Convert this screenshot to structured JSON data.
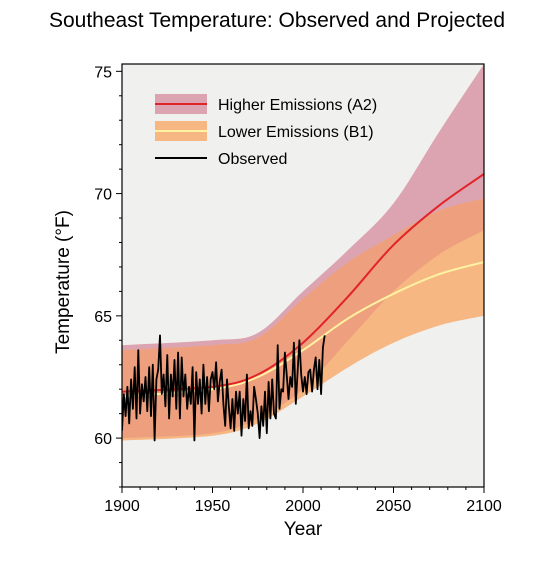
{
  "chart_data": {
    "type": "area",
    "title": "Southeast Temperature: Observed and Projected",
    "xlabel": "Year",
    "ylabel": "Temperature (°F)",
    "xlim": [
      1900,
      2100
    ],
    "ylim": [
      58,
      75.3
    ],
    "xticks": [
      1900,
      1950,
      2000,
      2050,
      2100
    ],
    "yticks": [
      60,
      65,
      70,
      75
    ],
    "legend_position": "top-left",
    "grid": false,
    "colors": {
      "plot_background": "#f0f0ef",
      "a2_band": "#dca3b1",
      "b1_band": "#f6b783",
      "overlap_band": "#ee9f7e",
      "a2_line": "#e2242a",
      "b1_line": "#fff2a0",
      "observed_line": "#000000"
    },
    "series": [
      {
        "name": "Higher Emissions (A2)",
        "kind": "band_with_median",
        "x": [
          1900,
          1950,
          1975,
          2000,
          2025,
          2050,
          2075,
          2100
        ],
        "median": [
          61.9,
          62.1,
          62.6,
          63.9,
          65.8,
          67.9,
          69.5,
          70.8
        ],
        "upper": [
          63.8,
          64.0,
          64.3,
          66.0,
          67.7,
          69.6,
          72.5,
          75.3
        ],
        "lower": [
          60.0,
          60.2,
          60.8,
          62.0,
          64.0,
          66.0,
          67.5,
          68.5
        ]
      },
      {
        "name": "Lower Emissions (B1)",
        "kind": "band_with_median",
        "x": [
          1900,
          1950,
          1975,
          2000,
          2025,
          2050,
          2075,
          2100
        ],
        "median": [
          61.7,
          62.0,
          62.5,
          63.6,
          64.9,
          65.9,
          66.7,
          67.2
        ],
        "upper": [
          63.6,
          63.8,
          64.1,
          65.7,
          67.2,
          68.3,
          69.3,
          69.8
        ],
        "lower": [
          59.9,
          60.1,
          60.6,
          61.7,
          62.9,
          63.9,
          64.6,
          65.0
        ]
      },
      {
        "name": "Observed",
        "kind": "line",
        "x": [
          1900,
          1901,
          1902,
          1903,
          1904,
          1905,
          1906,
          1907,
          1908,
          1909,
          1910,
          1911,
          1912,
          1913,
          1914,
          1915,
          1916,
          1917,
          1918,
          1919,
          1920,
          1921,
          1922,
          1923,
          1924,
          1925,
          1926,
          1927,
          1928,
          1929,
          1930,
          1931,
          1932,
          1933,
          1934,
          1935,
          1936,
          1937,
          1938,
          1939,
          1940,
          1941,
          1942,
          1943,
          1944,
          1945,
          1946,
          1947,
          1948,
          1949,
          1950,
          1951,
          1952,
          1953,
          1954,
          1955,
          1956,
          1957,
          1958,
          1959,
          1960,
          1961,
          1962,
          1963,
          1964,
          1965,
          1966,
          1967,
          1968,
          1969,
          1970,
          1971,
          1972,
          1973,
          1974,
          1975,
          1976,
          1977,
          1978,
          1979,
          1980,
          1981,
          1982,
          1983,
          1984,
          1985,
          1986,
          1987,
          1988,
          1989,
          1990,
          1991,
          1992,
          1993,
          1994,
          1995,
          1996,
          1997,
          1998,
          1999,
          2000,
          2001,
          2002,
          2003,
          2004,
          2005,
          2006,
          2007,
          2008,
          2009,
          2010,
          2011,
          2012
        ],
        "values": [
          60.3,
          61.8,
          60.9,
          62.1,
          60.6,
          62.4,
          61.2,
          62.9,
          60.8,
          63.6,
          61.0,
          62.2,
          61.5,
          62.5,
          61.1,
          62.9,
          60.9,
          63.0,
          59.9,
          62.4,
          62.8,
          64.2,
          61.8,
          62.6,
          61.3,
          63.4,
          60.8,
          62.6,
          61.7,
          63.2,
          61.2,
          63.5,
          60.8,
          63.3,
          61.7,
          62.6,
          61.2,
          62.1,
          61.4,
          62.9,
          59.9,
          62.7,
          61.4,
          62.4,
          61.0,
          63.0,
          61.4,
          62.5,
          61.1,
          62.4,
          62.7,
          62.0,
          63.1,
          61.5,
          62.3,
          62.8,
          61.4,
          60.5,
          62.4,
          61.3,
          60.4,
          61.6,
          60.3,
          61.9,
          61.0,
          61.9,
          60.1,
          61.6,
          60.7,
          62.6,
          60.4,
          61.1,
          60.5,
          62.1,
          61.6,
          61.0,
          60.0,
          61.3,
          60.5,
          61.9,
          60.2,
          62.3,
          60.8,
          62.4,
          61.0,
          60.8,
          63.8,
          61.2,
          62.0,
          61.9,
          63.5,
          62.6,
          61.6,
          62.5,
          62.1,
          63.9,
          61.4,
          62.7,
          64.0,
          62.6,
          61.9,
          62.5,
          61.8,
          62.7,
          62.8,
          61.9,
          62.8,
          63.3,
          62.0,
          63.2,
          61.8,
          63.7,
          64.2
        ]
      }
    ]
  }
}
